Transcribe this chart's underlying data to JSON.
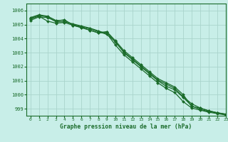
{
  "title": "Graphe pression niveau de la mer (hPa)",
  "background_color": "#c8eee8",
  "grid_color": "#aad4cc",
  "line_color": "#1a6b2a",
  "marker_color": "#1a6b2a",
  "xlim": [
    -0.5,
    23
  ],
  "ylim": [
    998.5,
    1006.5
  ],
  "yticks": [
    999,
    1000,
    1001,
    1002,
    1003,
    1004,
    1005,
    1006
  ],
  "xticks": [
    0,
    1,
    2,
    3,
    4,
    5,
    6,
    7,
    8,
    9,
    10,
    11,
    12,
    13,
    14,
    15,
    16,
    17,
    18,
    19,
    20,
    21,
    22,
    23
  ],
  "series": [
    [
      1005.5,
      1005.7,
      1005.6,
      1005.3,
      1005.3,
      1005.0,
      1004.85,
      1004.7,
      1004.5,
      1004.3,
      1003.8,
      1003.0,
      1002.5,
      1002.0,
      1001.5,
      1001.0,
      1000.6,
      1000.35,
      999.8,
      999.2,
      998.95,
      998.8,
      998.7,
      998.6
    ],
    [
      1005.45,
      1005.65,
      1005.55,
      1005.2,
      1005.2,
      1005.05,
      1004.9,
      1004.75,
      1004.55,
      1004.35,
      1003.55,
      1002.85,
      1002.35,
      1001.85,
      1001.35,
      1000.85,
      1000.45,
      1000.15,
      999.5,
      999.05,
      998.9,
      998.75,
      998.65,
      998.55
    ],
    [
      1005.4,
      1005.6,
      1005.25,
      1005.1,
      1005.15,
      1004.95,
      1004.8,
      1004.6,
      1004.4,
      1004.45,
      1003.75,
      1003.05,
      1002.55,
      1002.05,
      1001.55,
      1001.05,
      1000.75,
      1000.45,
      999.85,
      999.35,
      999.05,
      998.85,
      998.7,
      998.6
    ],
    [
      1005.3,
      1005.55,
      1005.5,
      1005.25,
      1005.35,
      1004.95,
      1004.78,
      1004.6,
      1004.42,
      1004.5,
      1003.85,
      1003.15,
      1002.65,
      1002.15,
      1001.65,
      1001.15,
      1000.85,
      1000.55,
      1000.0,
      999.15,
      999.05,
      998.85,
      998.72,
      998.62
    ]
  ]
}
